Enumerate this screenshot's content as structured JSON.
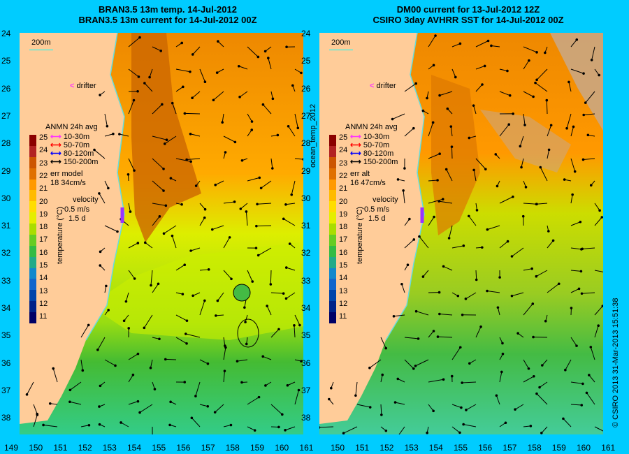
{
  "left_panel": {
    "title_line1": "BRAN3.5 13m temp. 14-Jul-2012",
    "title_line2": "BRAN3.5 13m current for 14-Jul-2012 00Z",
    "err_label": "err model",
    "err_value": "18 34cm/s"
  },
  "right_panel": {
    "title_line1": "DM00 current for 13-Jul-2012 12Z",
    "title_line2": "CSIRO 3day AVHRR SST for 14-Jul-2012 00Z",
    "err_label": "err alt",
    "err_value": "16 47cm/s"
  },
  "scale_label": "200m",
  "drifter_label": "drifter",
  "legend": {
    "title": "ANMN 24h avg",
    "items": [
      {
        "label": "10-30m",
        "color": "#ff33ff"
      },
      {
        "label": "50-70m",
        "color": "#ff0000"
      },
      {
        "label": "80-120m",
        "color": "#0000ff"
      },
      {
        "label": "150-200m",
        "color": "#000000"
      }
    ],
    "velocity_label": "velocity",
    "velocity_value": "0.5 m/s",
    "velocity_time": "1.5 d"
  },
  "colorbar": {
    "axis_label": "temperature (°C)",
    "ticks": [
      "25",
      "24",
      "23",
      "22",
      "21",
      "20",
      "19",
      "18",
      "17",
      "16",
      "15",
      "14",
      "13",
      "12",
      "11"
    ],
    "colors": [
      "#8b0000",
      "#b22222",
      "#cc5500",
      "#e07000",
      "#ff9900",
      "#ffbb00",
      "#ffdd00",
      "#e5ee00",
      "#aadd00",
      "#66cc22",
      "#33bb44",
      "#22aa88",
      "#1188cc",
      "#1166cc",
      "#0044aa",
      "#002288",
      "#000066"
    ]
  },
  "latitudes": [
    "24",
    "25",
    "26",
    "27",
    "28",
    "29",
    "30",
    "31",
    "32",
    "33",
    "34",
    "35",
    "36",
    "37",
    "38"
  ],
  "longitudes_left": [
    "149",
    "150",
    "151",
    "152",
    "153",
    "154",
    "155",
    "156",
    "157",
    "158",
    "159",
    "160",
    "161"
  ],
  "longitudes_right": [
    "150",
    "151",
    "152",
    "153",
    "154",
    "155",
    "156",
    "157",
    "158",
    "159",
    "160",
    "161"
  ],
  "side_label": "ocean_temp_2012",
  "credit": "© CSIRO 2013   31-Mar-2013 15:51:38",
  "colors": {
    "land": "#ffcc99",
    "background": "#00ccff",
    "cloud": "#c8a888"
  }
}
